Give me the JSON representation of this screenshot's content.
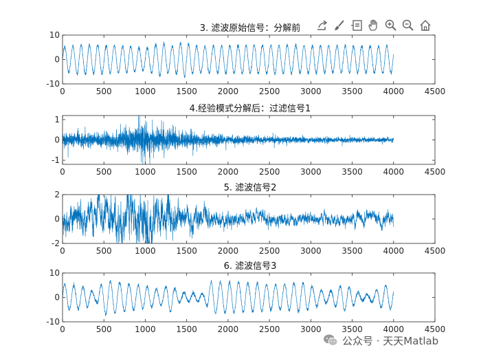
{
  "toolbar": {
    "icons": [
      "export-icon",
      "brush-icon",
      "data-tips-icon",
      "pan-hand-icon",
      "zoom-in-icon",
      "zoom-out-icon",
      "home-icon"
    ]
  },
  "watermark": {
    "text": "公众号 · 天天Matlab"
  },
  "colors": {
    "line": "#0072BD",
    "axis": "#262626",
    "tick_text": "#262626"
  },
  "chart_data": [
    {
      "type": "line",
      "title": "3. 滤波原始信号：分解前",
      "xlim": [
        0,
        4500
      ],
      "ylim": [
        -10,
        10
      ],
      "xticks": [
        0,
        500,
        1000,
        1500,
        2000,
        2500,
        3000,
        3500,
        4000,
        4500
      ],
      "yticks": [
        -10,
        0,
        10
      ],
      "grid": false,
      "series": [
        {
          "kind": "oscillation",
          "n_points": 4000,
          "cycles": 40,
          "envelope": [
            [
              0,
              5
            ],
            [
              200,
              6
            ],
            [
              800,
              5.5
            ],
            [
              1000,
              4.5
            ],
            [
              1200,
              7
            ],
            [
              1300,
              5
            ],
            [
              1450,
              7
            ],
            [
              1600,
              5.5
            ],
            [
              2500,
              5.8
            ],
            [
              3500,
              5.5
            ],
            [
              4000,
              5.5
            ]
          ],
          "range": [
            -9,
            7.5
          ]
        }
      ]
    },
    {
      "type": "line",
      "title": "4.经验模式分解后：过滤信号1",
      "xlim": [
        0,
        4500
      ],
      "ylim": [
        -1.2,
        1.2
      ],
      "xticks": [
        0,
        500,
        1000,
        1500,
        2000,
        2500,
        3000,
        3500,
        4000,
        4500
      ],
      "yticks": [
        -1,
        0,
        1
      ],
      "grid": false,
      "series": [
        {
          "kind": "noise",
          "n_points": 4000,
          "envelope": [
            [
              0,
              0.35
            ],
            [
              400,
              0.35
            ],
            [
              700,
              0.5
            ],
            [
              950,
              0.75
            ],
            [
              1200,
              0.6
            ],
            [
              1500,
              0.4
            ],
            [
              2000,
              0.22
            ],
            [
              3000,
              0.15
            ],
            [
              4000,
              0.12
            ]
          ],
          "spikes": [
            [
              930,
              1.2
            ],
            [
              950,
              -1.1
            ],
            [
              1000,
              0.95
            ],
            [
              1100,
              -0.9
            ],
            [
              1220,
              0.9
            ],
            [
              1330,
              0.75
            ],
            [
              810,
              -0.6
            ],
            [
              1550,
              0.55
            ]
          ]
        }
      ]
    },
    {
      "type": "line",
      "title": "5. 滤波信号2",
      "xlim": [
        0,
        4500
      ],
      "ylim": [
        -2,
        2
      ],
      "xticks": [
        0,
        500,
        1000,
        1500,
        2000,
        2500,
        3000,
        3500,
        4000,
        4500
      ],
      "yticks": [
        -2,
        0,
        2
      ],
      "grid": false,
      "series": [
        {
          "kind": "mixed",
          "n_points": 4000,
          "envelope": [
            [
              0,
              0.6
            ],
            [
              500,
              0.8
            ],
            [
              800,
              1.0
            ],
            [
              1000,
              1.3
            ],
            [
              1200,
              0.9
            ],
            [
              1500,
              0.55
            ],
            [
              2000,
              0.35
            ],
            [
              3000,
              0.25
            ],
            [
              4000,
              0.3
            ]
          ],
          "spikes": [
            [
              1030,
              1.55
            ],
            [
              1050,
              -1.6
            ],
            [
              1000,
              1.2
            ],
            [
              500,
              -1.0
            ],
            [
              1250,
              -1.0
            ],
            [
              3650,
              0.6
            ],
            [
              4000,
              1.2
            ]
          ]
        }
      ]
    },
    {
      "type": "line",
      "title": "6. 滤波信号3",
      "xlim": [
        0,
        4500
      ],
      "ylim": [
        -10,
        10
      ],
      "xticks": [
        0,
        500,
        1000,
        1500,
        2000,
        2500,
        3000,
        3500,
        4000,
        4500
      ],
      "yticks": [
        -10,
        0,
        10
      ],
      "grid": false,
      "series": [
        {
          "kind": "oscillation",
          "n_points": 4000,
          "cycles": 36,
          "envelope": [
            [
              0,
              5.5
            ],
            [
              300,
              4
            ],
            [
              400,
              1.5
            ],
            [
              500,
              7
            ],
            [
              700,
              6
            ],
            [
              1000,
              4.5
            ],
            [
              1200,
              3
            ],
            [
              1300,
              6
            ],
            [
              1400,
              2
            ],
            [
              1700,
              1.5
            ],
            [
              1800,
              6.5
            ],
            [
              2300,
              6
            ],
            [
              2600,
              5
            ],
            [
              2900,
              6
            ],
            [
              3200,
              2
            ],
            [
              3400,
              5.5
            ],
            [
              3600,
              1.5
            ],
            [
              3700,
              1.2
            ],
            [
              3900,
              5
            ],
            [
              4000,
              4.5
            ]
          ],
          "range": [
            -9,
            7.5
          ]
        }
      ]
    }
  ]
}
